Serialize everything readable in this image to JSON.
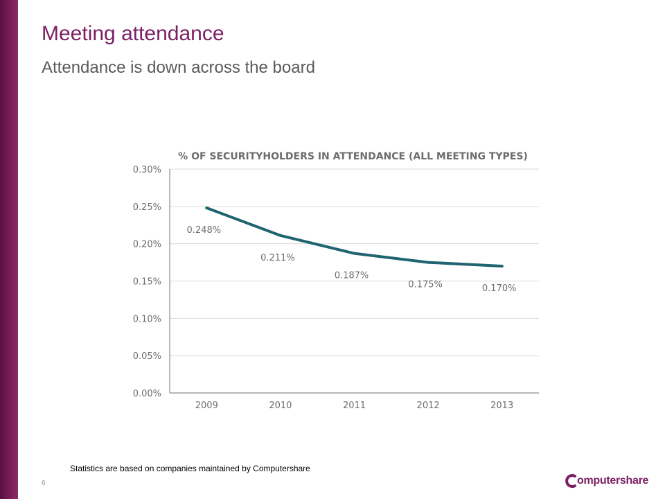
{
  "slide": {
    "title": "Meeting attendance",
    "subtitle": "Attendance is down across the board",
    "footnote": "Statistics are based on companies maintained by Computershare",
    "page_number": "6",
    "logo_text": "omputershare",
    "accent_color": "#7b1f62"
  },
  "chart_data": {
    "type": "line",
    "title": "% OF SECURITYHOLDERS IN ATTENDANCE (ALL MEETING TYPES)",
    "categories": [
      "2009",
      "2010",
      "2011",
      "2012",
      "2013"
    ],
    "series": [
      {
        "values": [
          0.248,
          0.211,
          0.187,
          0.175,
          0.17
        ],
        "color": "#1f6470"
      }
    ],
    "data_labels": [
      "0.248%",
      "0.211%",
      "0.187%",
      "0.175%",
      "0.170%"
    ],
    "y_ticks": [
      0.0,
      0.05,
      0.1,
      0.15,
      0.2,
      0.25,
      0.3
    ],
    "y_tick_labels": [
      "0.00%",
      "0.05%",
      "0.10%",
      "0.15%",
      "0.20%",
      "0.25%",
      "0.30%"
    ],
    "ylim": [
      0,
      0.3
    ],
    "grid": true,
    "xlabel": "",
    "ylabel": ""
  }
}
